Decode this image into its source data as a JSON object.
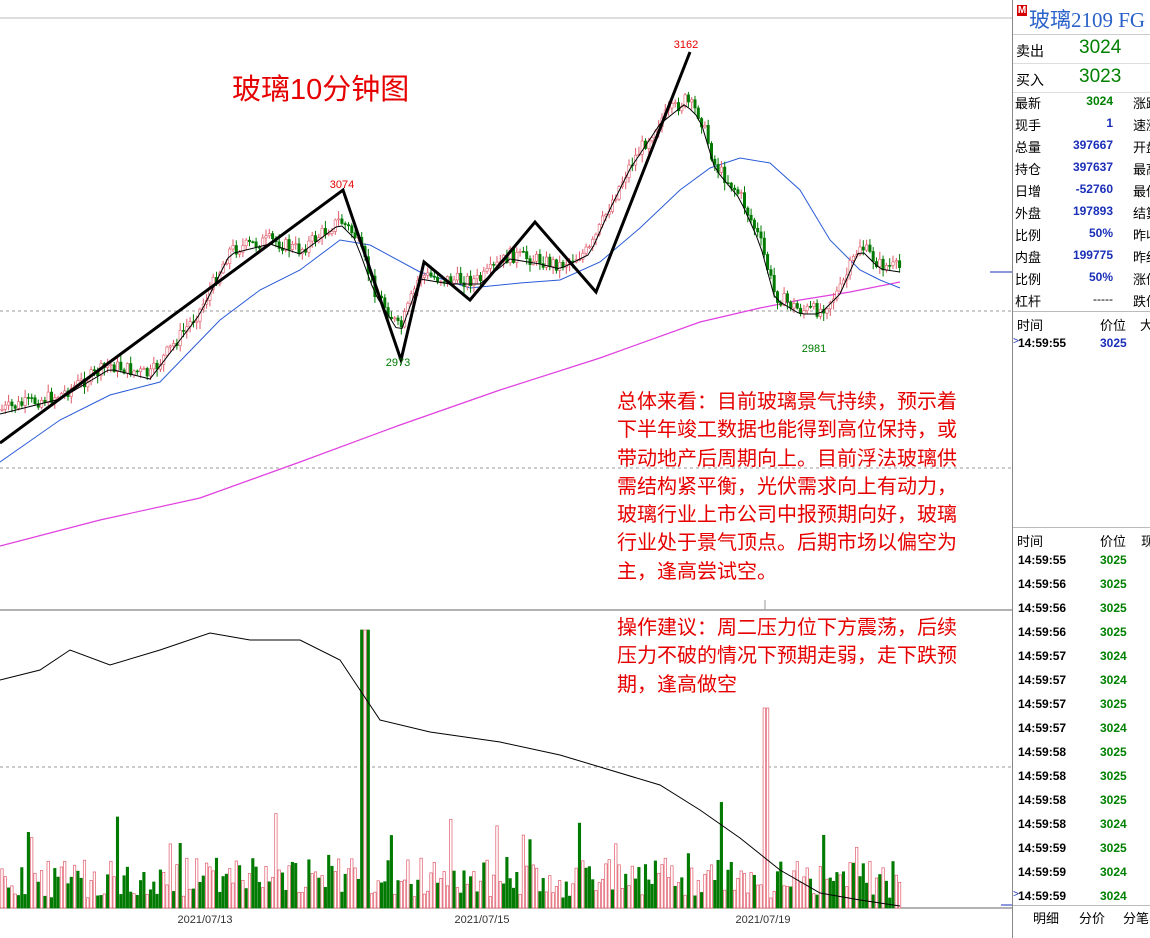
{
  "chart_title": "玻璃10分钟图",
  "commentary": {
    "lines": [
      "总体来看：目前玻璃景气持续，预示着",
      "下半年竣工数据也能得到高位保持，或",
      "带动地产后周期向上。目前浮法玻璃供",
      "需结构紧平衡，光伏需求向上有动力，",
      "玻璃行业上市公司中报预期向好，玻璃",
      "行业处于景气顶点。后期市场以偏空为",
      "主，逢高尝试空。",
      "",
      "操作建议：周二压力位下方震荡，后续",
      "压力不破的情况下预期走弱，走下跌预",
      "期，逢高做空"
    ]
  },
  "price_annotations": {
    "high": "3162",
    "first_high": "3074",
    "low1": "2973",
    "low2": "2981"
  },
  "x_axis_dates": [
    "2021/07/13",
    "2021/07/15",
    "2021/07/19"
  ],
  "colors": {
    "up": "#e05a6a",
    "down": "#007a00",
    "ma_short": "#000000",
    "ma_mid": "#2a5bd6",
    "ma_long": "#e040e0",
    "text_red": "#e60000"
  },
  "panel": {
    "badge": "M",
    "instrument": "玻璃2109  FG",
    "ask": {
      "label": "卖出",
      "value": "3024"
    },
    "bid": {
      "label": "买入",
      "value": "3023"
    },
    "stats": [
      {
        "label": "最新",
        "value": "3024",
        "label2": "涨跌"
      },
      {
        "label": "现手",
        "value": "1",
        "label2": "速涨"
      },
      {
        "label": "总量",
        "value": "397667",
        "label2": "开盘"
      },
      {
        "label": "持仓",
        "value": "397637",
        "label2": "最高"
      },
      {
        "label": "日增",
        "value": "-52760",
        "label2": "最低"
      },
      {
        "label": "外盘",
        "value": "197893",
        "label2": "结算"
      },
      {
        "label": "比例",
        "value": "50%",
        "label2": "昨收"
      },
      {
        "label": "内盘",
        "value": "199775",
        "label2": "昨结"
      },
      {
        "label": "比例",
        "value": "50%",
        "label2": "涨停"
      },
      {
        "label": "杠杆",
        "value": "-----",
        "label2": "跌停"
      }
    ],
    "tick_header_1": {
      "time": "时间",
      "price": "价位",
      "vol": "大"
    },
    "tick_top": {
      "time": "14:59:55",
      "price": "3025"
    },
    "tick_header_2": {
      "time": "时间",
      "price": "价位",
      "vol": "现"
    },
    "ticks": [
      {
        "time": "14:59:55",
        "price": "3025",
        "color": "#008000"
      },
      {
        "time": "14:59:56",
        "price": "3025",
        "color": "#008000"
      },
      {
        "time": "14:59:56",
        "price": "3025",
        "color": "#008000"
      },
      {
        "time": "14:59:56",
        "price": "3025",
        "color": "#008000"
      },
      {
        "time": "14:59:57",
        "price": "3024",
        "color": "#008000"
      },
      {
        "time": "14:59:57",
        "price": "3024",
        "color": "#008000"
      },
      {
        "time": "14:59:57",
        "price": "3025",
        "color": "#008000"
      },
      {
        "time": "14:59:57",
        "price": "3024",
        "color": "#008000"
      },
      {
        "time": "14:59:58",
        "price": "3025",
        "color": "#008000"
      },
      {
        "time": "14:59:58",
        "price": "3025",
        "color": "#008000"
      },
      {
        "time": "14:59:58",
        "price": "3025",
        "color": "#008000"
      },
      {
        "time": "14:59:58",
        "price": "3024",
        "color": "#008000"
      },
      {
        "time": "14:59:59",
        "price": "3025",
        "color": "#008000"
      },
      {
        "time": "14:59:59",
        "price": "3024",
        "color": "#008000"
      },
      {
        "time": "14:59:59",
        "price": "3024",
        "color": "#008000"
      }
    ],
    "tabs": [
      "明细",
      "分价",
      "分笔"
    ]
  },
  "chart_data": {
    "type": "candlestick",
    "title": "玻璃10分钟图",
    "swing_points": [
      {
        "label": "3074",
        "value": 3074
      },
      {
        "label": "2973",
        "value": 2973
      },
      {
        "label": "3162",
        "value": 3162
      },
      {
        "label": "2981",
        "value": 2981
      }
    ],
    "x_tick_labels": [
      "2021/07/13",
      "2021/07/15",
      "2021/07/19"
    ]
  }
}
